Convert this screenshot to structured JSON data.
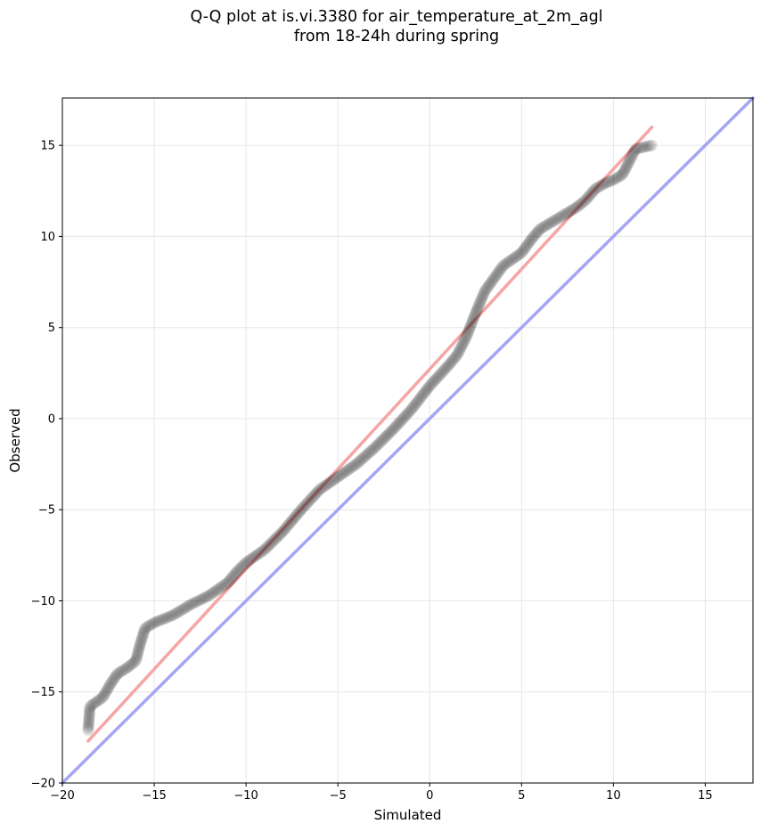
{
  "chart_data": {
    "type": "scatter",
    "title": "Q-Q plot at is.vi.3380 for air_temperature_at_2m_agl",
    "subtitle": "from 18-24h during spring",
    "xlabel": "Simulated",
    "ylabel": "Observed",
    "xlim": [
      -20,
      17.6
    ],
    "ylim": [
      -20,
      17.6
    ],
    "xticks": [
      -20,
      -15,
      -10,
      -5,
      0,
      5,
      10,
      15
    ],
    "yticks": [
      -20,
      -15,
      -10,
      -5,
      0,
      5,
      10,
      15
    ],
    "grid": true,
    "quantile_anchors": {
      "x": [
        -18.6,
        -18.5,
        -17.8,
        -17.4,
        -17.0,
        -16.5,
        -16.0,
        -15.8,
        -15.5,
        -15.0,
        -14.5,
        -14.0,
        -13.5,
        -13.0,
        -12.0,
        -11.0,
        -10.5,
        -10.0,
        -9.0,
        -8.0,
        -7.0,
        -6.0,
        -5.0,
        -4.0,
        -3.0,
        -2.0,
        -1.0,
        0.0,
        1.0,
        1.5,
        2.0,
        2.5,
        3.0,
        4.0,
        5.0,
        5.5,
        6.0,
        7.0,
        7.5,
        8.0,
        8.5,
        9.0,
        9.5,
        10.0,
        10.5,
        10.8,
        11.0,
        11.2,
        12.1
      ],
      "y": [
        -17.1,
        -15.8,
        -15.3,
        -14.6,
        -14.0,
        -13.7,
        -13.3,
        -12.5,
        -11.5,
        -11.2,
        -11.0,
        -10.8,
        -10.5,
        -10.2,
        -9.7,
        -9.0,
        -8.4,
        -7.9,
        -7.2,
        -6.2,
        -5.0,
        -3.9,
        -3.2,
        -2.5,
        -1.6,
        -0.6,
        0.5,
        1.8,
        2.9,
        3.5,
        4.5,
        5.8,
        7.0,
        8.4,
        9.1,
        9.8,
        10.4,
        11.0,
        11.3,
        11.6,
        12.0,
        12.6,
        12.9,
        13.1,
        13.4,
        14.0,
        14.4,
        14.8,
        15.0
      ]
    },
    "n_points": 420,
    "reference_lines": [
      {
        "name": "fit",
        "x": [
          -18.6,
          12.1
        ],
        "y": [
          -17.7,
          16.0
        ],
        "color": "#f6a5a5"
      },
      {
        "name": "1:1",
        "x": [
          -20,
          17.6
        ],
        "y": [
          -20,
          17.6
        ],
        "color": "#a5a5f6"
      }
    ],
    "colors": {
      "points": "#000000",
      "grid": "#e6e6e6"
    }
  }
}
